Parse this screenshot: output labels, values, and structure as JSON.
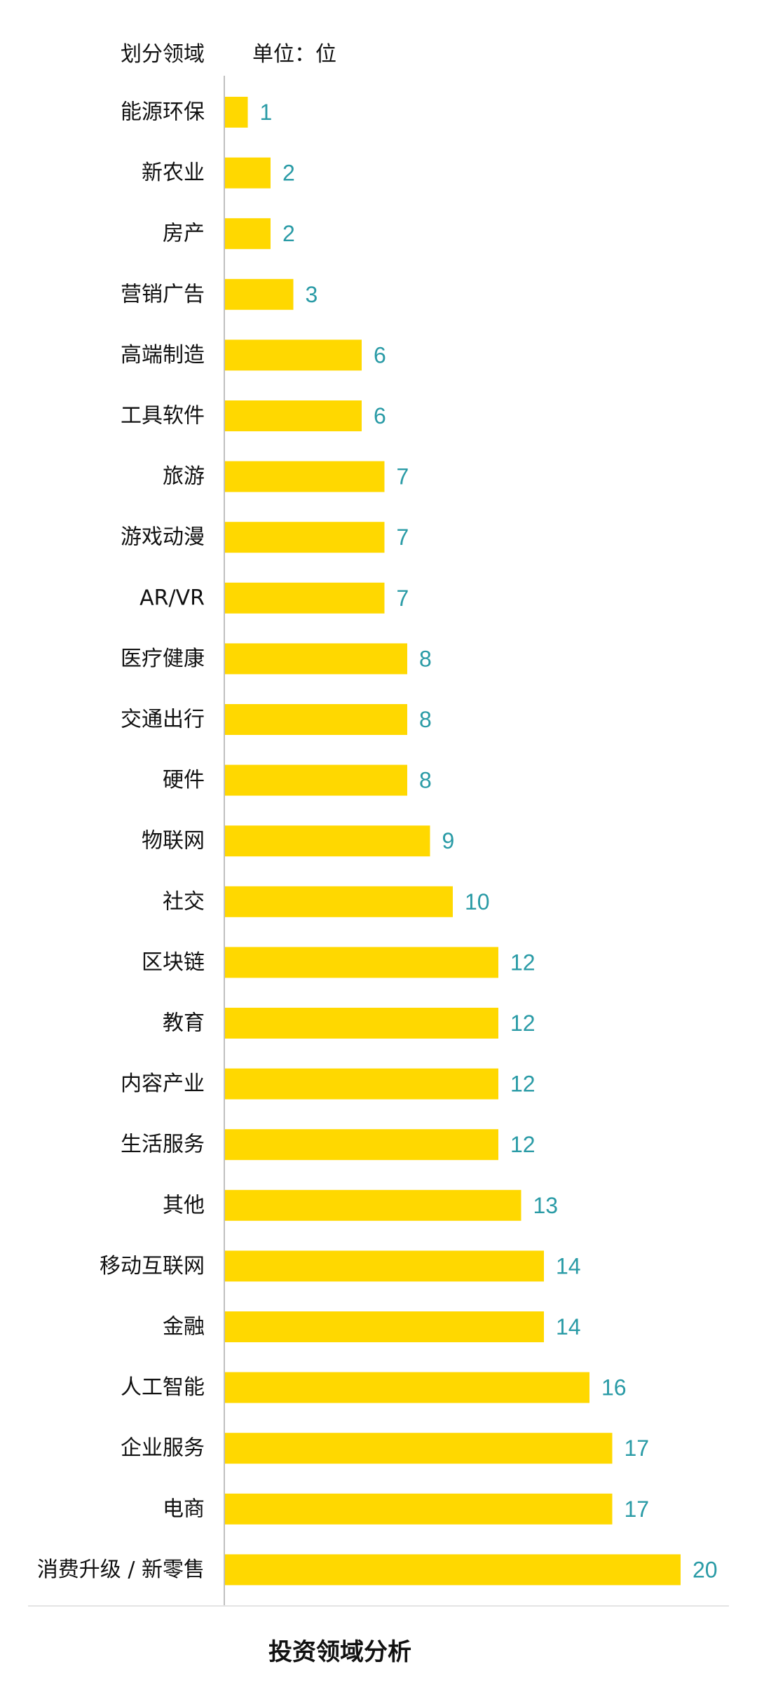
{
  "header": {
    "category_label": "划分领域",
    "unit_label": "单位：位"
  },
  "footer": {
    "title": "投资领域分析"
  },
  "colors": {
    "bar": "#ffd800",
    "value_label": "#2a9ba6",
    "category_label": "#111111",
    "axis_line": "#bfbfbf"
  },
  "chart_data": {
    "type": "bar",
    "orientation": "horizontal",
    "title": "投资领域分析",
    "xlabel": "",
    "ylabel": "划分领域",
    "unit": "单位：位",
    "xlim": [
      0,
      20
    ],
    "grid": false,
    "categories": [
      "能源环保",
      "新农业",
      "房产",
      "营销广告",
      "高端制造",
      "工具软件",
      "旅游",
      "游戏动漫",
      "AR/VR",
      "医疗健康",
      "交通出行",
      "硬件",
      "物联网",
      "社交",
      "区块链",
      "教育",
      "内容产业",
      "生活服务",
      "其他",
      "移动互联网",
      "金融",
      "人工智能",
      "企业服务",
      "电商",
      "消费升级 / 新零售"
    ],
    "values": [
      1,
      2,
      2,
      3,
      6,
      6,
      7,
      7,
      7,
      8,
      8,
      8,
      9,
      10,
      12,
      12,
      12,
      12,
      13,
      14,
      14,
      16,
      17,
      17,
      20
    ],
    "value_labels": [
      "1",
      "2",
      "2",
      "3",
      "6",
      "6",
      "7",
      "7",
      "7",
      "8",
      "8",
      "8",
      "9",
      "10",
      "12",
      "12",
      "12",
      "12",
      "13",
      "14",
      "14",
      "16",
      "17",
      "17",
      "20"
    ]
  }
}
